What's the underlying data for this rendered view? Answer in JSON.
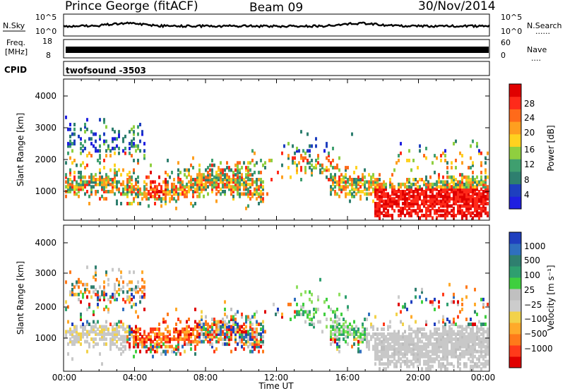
{
  "header": {
    "station": "Prince George (fitACF)",
    "beam": "Beam 09",
    "date": "30/Nov/2014"
  },
  "strips": {
    "nsky_label": "N.Sky",
    "nsky_ticks": [
      "10^5",
      "10^0"
    ],
    "nsearch_label": "N.Search",
    "nsearch_ticks": [
      "10^5",
      "10^0"
    ],
    "freq_label_1": "Freq.",
    "freq_label_2": "[MHz]",
    "freq_ticks": [
      "18",
      "8"
    ],
    "nave_label": "Nave",
    "nave_ticks": [
      "60",
      "0"
    ],
    "cpid_label": "CPID",
    "cpid_value": "twofsound -3503"
  },
  "legend_dots": "......",
  "legend_dots_short": "....",
  "chart_data": [
    {
      "type": "heatmap",
      "name": "power",
      "ylabel": "Slant Range [km]",
      "ylim": [
        180,
        4600
      ],
      "yticks": [
        "1000",
        "2000",
        "3000",
        "4000"
      ],
      "xlim": [
        0,
        24
      ],
      "colorbar": {
        "label": "Power [dB]",
        "ticks": [
          "28",
          "24",
          "20",
          "16",
          "12",
          "8",
          "4"
        ],
        "colors": [
          "#1f1fe0",
          "#1e3fbf",
          "#2e7f6f",
          "#3f9f6f",
          "#8fcf3f",
          "#ffd21f",
          "#ff9f1f",
          "#ff6a1a",
          "#ff2a1a",
          "#e00000"
        ]
      }
    },
    {
      "type": "heatmap",
      "name": "velocity",
      "ylabel": "Slant Range [km]",
      "ylim": [
        180,
        4600
      ],
      "yticks": [
        "1000",
        "2000",
        "3000",
        "4000"
      ],
      "xlim": [
        0,
        24
      ],
      "xlabel": "Time UT",
      "xticks": [
        "00:00",
        "04:00",
        "08:00",
        "12:00",
        "16:00",
        "20:00",
        "00:00"
      ],
      "colorbar": {
        "label": "Velocity [m s⁻¹]",
        "ticks": [
          "1000",
          "500",
          "100",
          "25",
          "−25",
          "−100",
          "−500",
          "−1000"
        ],
        "colors": [
          "#e00000",
          "#ff3a1a",
          "#ff7a1a",
          "#ffaa2a",
          "#f2d24a",
          "#cccccc",
          "#c0c0c0",
          "#3fcf3f",
          "#2f9f6f",
          "#2f7f6f",
          "#2f6fbf",
          "#1f3fbf"
        ]
      }
    }
  ]
}
